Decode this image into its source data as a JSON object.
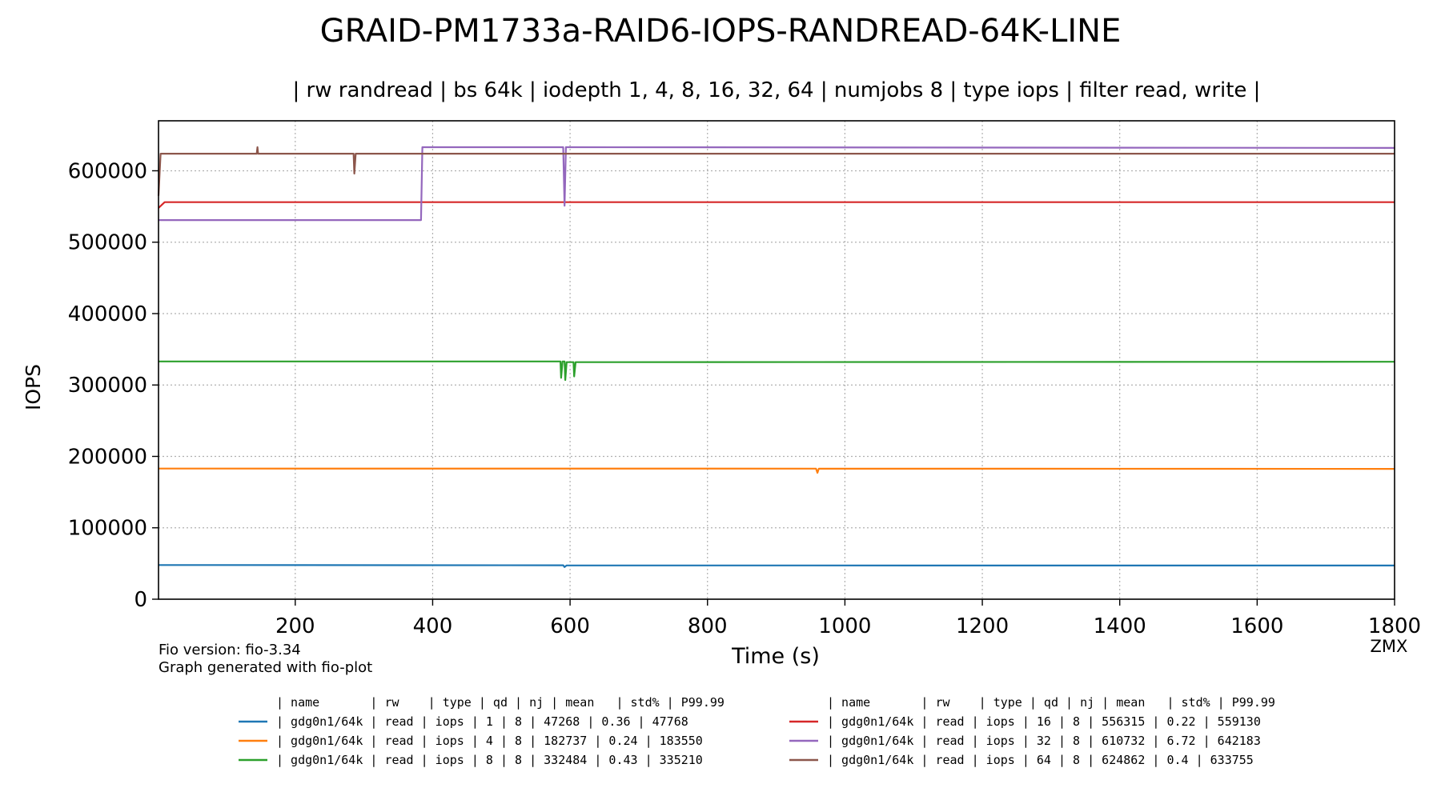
{
  "chart_data": {
    "type": "line",
    "title": "GRAID-PM1733a-RAID6-IOPS-RANDREAD-64K-LINE",
    "subtitle": "| rw randread | bs 64k | iodepth 1, 4, 8, 16, 32, 64 | numjobs 8 | type iops | filter read, write |",
    "xlabel": "Time (s)",
    "ylabel": "IOPS",
    "xlim": [
      1,
      1800
    ],
    "ylim": [
      0,
      670000
    ],
    "x_ticks": [
      200,
      400,
      600,
      800,
      1000,
      1200,
      1400,
      1600,
      1800
    ],
    "y_ticks": [
      0,
      100000,
      200000,
      300000,
      400000,
      500000,
      600000
    ],
    "grid": true,
    "series": [
      {
        "name": "gdg0n1/64k",
        "color": "#1f77b4",
        "x": [
          1,
          590,
          592,
          595,
          1800
        ],
        "values": [
          47800,
          47500,
          45000,
          47300,
          47200
        ]
      },
      {
        "name": "gdg0n1/64k",
        "color": "#ff7f0e",
        "x": [
          1,
          958,
          960,
          962,
          1800
        ],
        "values": [
          183000,
          182800,
          177000,
          182800,
          182500
        ]
      },
      {
        "name": "gdg0n1/64k",
        "color": "#2ca02c",
        "x": [
          1,
          586,
          587,
          589,
          592,
          593,
          595,
          605,
          606,
          608,
          1800
        ],
        "values": [
          333000,
          333000,
          310000,
          333000,
          333000,
          307000,
          332000,
          332000,
          312000,
          332000,
          332500
        ]
      },
      {
        "name": "gdg0n1/64k",
        "color": "#d62728",
        "x": [
          1,
          10,
          1800
        ],
        "values": [
          548000,
          556000,
          556000
        ]
      },
      {
        "name": "gdg0n1/64k",
        "color": "#9467bd",
        "x": [
          1,
          383,
          385,
          590,
          592,
          594,
          1800
        ],
        "values": [
          531000,
          531000,
          633000,
          633000,
          551000,
          633000,
          632000
        ]
      },
      {
        "name": "gdg0n1/64k",
        "color": "#8c564b",
        "x": [
          1,
          4,
          144,
          145,
          146,
          285,
          286,
          288,
          1800
        ],
        "values": [
          565000,
          624000,
          624000,
          633000,
          624000,
          624000,
          596000,
          624000,
          624000
        ]
      }
    ]
  },
  "footnote": {
    "line1": "Fio version: fio-3.34",
    "line2": "Graph generated with fio-plot",
    "watermark": "ZMX"
  },
  "legend_table": {
    "header": "| name       | rw    | type | qd | nj | mean   | std% | P99.99",
    "rows": [
      "| gdg0n1/64k |  read | iops |  1 |  8 |  47268 | 0.36 |  47768",
      "| gdg0n1/64k |  read | iops |  4 |  8 | 182737 | 0.24 | 183550",
      "| gdg0n1/64k |  read | iops |  8 |  8 | 332484 | 0.43 | 335210",
      "| gdg0n1/64k |  read | iops | 16 |  8 | 556315 | 0.22 | 559130",
      "| gdg0n1/64k |  read | iops | 32 |  8 | 610732 | 6.72 | 642183",
      "| gdg0n1/64k |  read | iops | 64 |  8 | 624862 |  0.4 | 633755"
    ]
  }
}
